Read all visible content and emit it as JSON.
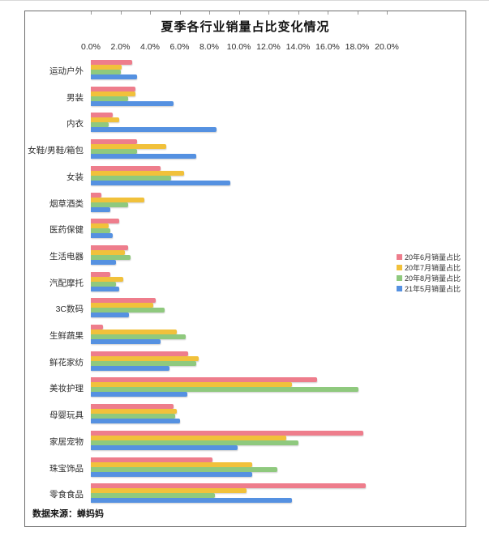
{
  "chart_data": {
    "type": "bar",
    "orientation": "horizontal",
    "title": "夏季各行业销量占比变化情况",
    "source_note": "数据来源：蝉妈妈",
    "xlim": [
      0,
      20
    ],
    "x_tick_step": 2,
    "x_ticks": [
      "0.0%",
      "2.0%",
      "4.0%",
      "6.0%",
      "8.0%",
      "10.0%",
      "12.0%",
      "14.0%",
      "16.0%",
      "18.0%",
      "20.0%"
    ],
    "grid": false,
    "legend_position": "right",
    "categories": [
      "运动户外",
      "男装",
      "内衣",
      "女鞋/男鞋/箱包",
      "女装",
      "烟草酒类",
      "医药保健",
      "生活电器",
      "汽配摩托",
      "3C数码",
      "生鲜蔬果",
      "鲜花家纺",
      "美妆护理",
      "母婴玩具",
      "家居宠物",
      "珠宝饰品",
      "零食食品"
    ],
    "series": [
      {
        "name": "20年6月销量占比",
        "color": "#EE7D8C",
        "values": [
          2.8,
          3.0,
          1.5,
          3.1,
          4.7,
          0.7,
          1.9,
          2.5,
          1.3,
          4.4,
          0.8,
          6.6,
          15.3,
          5.6,
          18.4,
          8.2,
          18.6
        ]
      },
      {
        "name": "20年7月销量占比",
        "color": "#F1C13B",
        "values": [
          2.1,
          3.0,
          1.9,
          5.1,
          6.3,
          3.6,
          1.2,
          2.3,
          2.2,
          4.2,
          5.8,
          7.3,
          13.6,
          5.8,
          13.2,
          10.9,
          10.5
        ]
      },
      {
        "name": "20年8月销量占比",
        "color": "#8FC97E",
        "values": [
          2.0,
          2.5,
          1.2,
          3.1,
          5.4,
          2.5,
          1.3,
          2.7,
          1.7,
          5.0,
          6.4,
          7.1,
          18.1,
          5.7,
          14.0,
          12.6,
          8.4
        ]
      },
      {
        "name": "21年5月销量占比",
        "color": "#5591E1",
        "values": [
          3.1,
          5.6,
          8.5,
          7.1,
          9.4,
          1.3,
          1.5,
          1.7,
          1.9,
          2.6,
          4.7,
          5.3,
          6.5,
          6.0,
          9.9,
          10.9,
          13.6
        ]
      }
    ]
  }
}
